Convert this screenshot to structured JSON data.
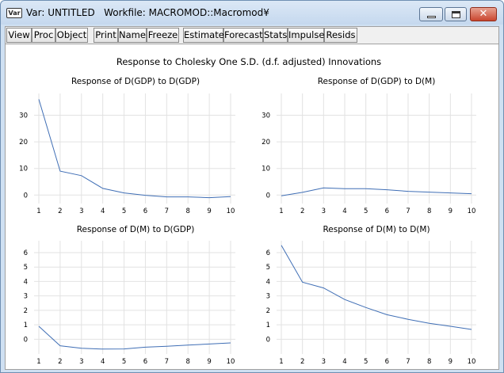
{
  "window": {
    "icon_label": "Var",
    "title": "Var: UNTITLED   Workfile: MACROMOD::Macromod¥"
  },
  "toolbar": {
    "buttons": [
      "View",
      "Proc",
      "Object",
      "Print",
      "Name",
      "Freeze",
      "Estimate",
      "Forecast",
      "Stats",
      "Impulse",
      "Resids"
    ]
  },
  "graph_title": "Response to Cholesky One S.D. (d.f. adjusted) Innovations",
  "chart_data": [
    {
      "type": "line",
      "title": "Response of D(GDP) to D(GDP)",
      "x": [
        1,
        2,
        3,
        4,
        5,
        6,
        7,
        8,
        9,
        10
      ],
      "values": [
        36,
        9,
        7.3,
        2.5,
        0.8,
        -0.1,
        -0.7,
        -0.7,
        -1.0,
        -0.6
      ],
      "yticks": [
        0,
        10,
        20,
        30
      ],
      "ylim": [
        -2,
        37
      ],
      "grid": true
    },
    {
      "type": "line",
      "title": "Response of D(GDP) to D(M)",
      "x": [
        1,
        2,
        3,
        4,
        5,
        6,
        7,
        8,
        9,
        10
      ],
      "values": [
        -0.3,
        1.0,
        2.7,
        2.4,
        2.4,
        2.0,
        1.4,
        1.1,
        0.8,
        0.5
      ],
      "yticks": [
        0,
        10,
        20,
        30
      ],
      "ylim": [
        -2,
        37
      ],
      "grid": true
    },
    {
      "type": "line",
      "title": "Response of D(M) to D(GDP)",
      "x": [
        1,
        2,
        3,
        4,
        5,
        6,
        7,
        8,
        9,
        10
      ],
      "values": [
        0.9,
        -0.45,
        -0.62,
        -0.68,
        -0.67,
        -0.55,
        -0.48,
        -0.4,
        -0.33,
        -0.25
      ],
      "yticks": [
        0,
        1,
        2,
        3,
        4,
        5,
        6
      ],
      "ylim": [
        -0.8,
        6.6
      ],
      "grid": true
    },
    {
      "type": "line",
      "title": "Response of D(M) to D(M)",
      "x": [
        1,
        2,
        3,
        4,
        5,
        6,
        7,
        8,
        9,
        10
      ],
      "values": [
        6.5,
        3.95,
        3.55,
        2.75,
        2.2,
        1.7,
        1.38,
        1.1,
        0.9,
        0.68
      ],
      "yticks": [
        0,
        1,
        2,
        3,
        4,
        5,
        6
      ],
      "ylim": [
        -0.8,
        6.6
      ],
      "grid": true
    }
  ],
  "colors": {
    "line": "#3f6eb5",
    "grid": "#e2e2e2",
    "titlebar": "#cfe0f2",
    "close": "#c9462f"
  }
}
